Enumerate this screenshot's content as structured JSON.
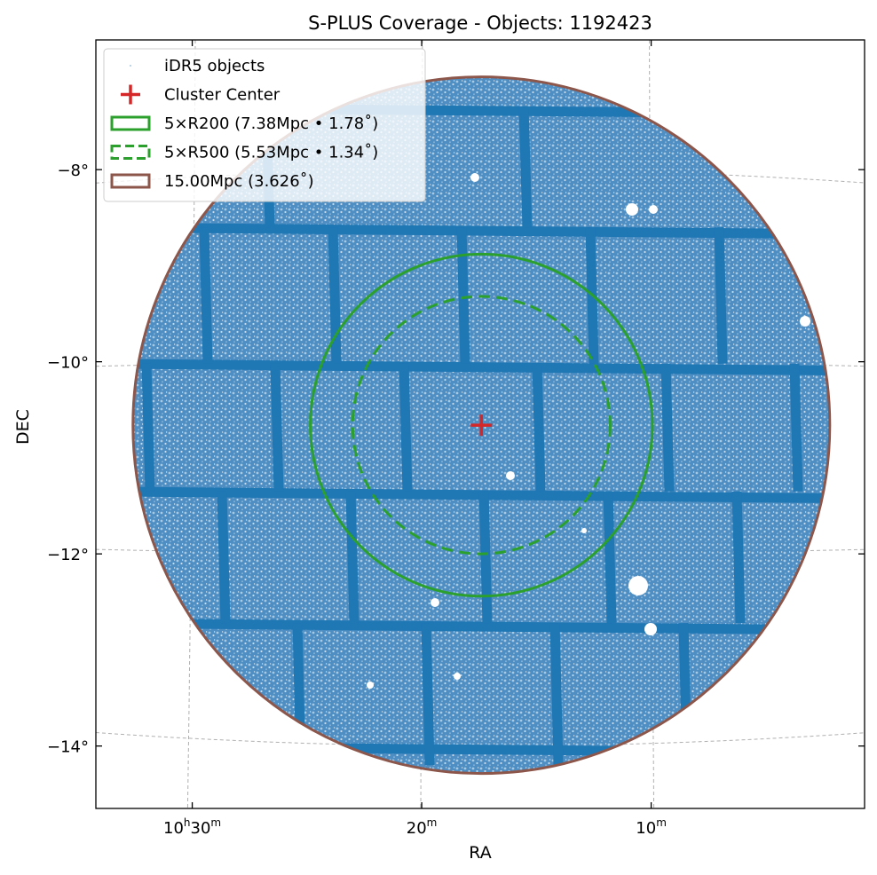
{
  "chart_data": {
    "type": "scatter",
    "projection": "sky (WCS)",
    "title": "S-PLUS Coverage - Objects: 1192423",
    "xlabel": "RA",
    "ylabel": "DEC",
    "x_ticks": [
      {
        "ra_min": 630,
        "label_main": "10",
        "label_sup1": "h",
        "label_mid": "30",
        "label_sup2": "m"
      },
      {
        "ra_min": 620,
        "label_main": "20",
        "label_sup1": "m",
        "label_mid": "",
        "label_sup2": ""
      },
      {
        "ra_min": 610,
        "label_main": "10",
        "label_sup1": "m",
        "label_mid": "",
        "label_sup2": ""
      }
    ],
    "y_ticks": [
      {
        "dec": -8,
        "label": "−8°"
      },
      {
        "dec": -10,
        "label": "−10°"
      },
      {
        "dec": -12,
        "label": "−12°"
      },
      {
        "dec": -14,
        "label": "−14°"
      }
    ],
    "xlim_ra_min": [
      634.2,
      600.7
    ],
    "ylim_dec": [
      -14.65,
      -6.65
    ],
    "grid": true,
    "legend_position": "top-left",
    "center": {
      "ra_min": 617.4,
      "dec": -10.66
    },
    "series": [
      {
        "name": "iDR5 objects",
        "kind": "points",
        "count": 1192423,
        "color": "#1f77b4"
      },
      {
        "name": "Cluster Center",
        "kind": "marker",
        "marker": "+",
        "color": "#d62728"
      },
      {
        "name": "5×R200 (7.38Mpc • 1.78$^\\circ$)",
        "label": "5×R200 (7.38Mpc • 1.78˚)",
        "kind": "circle",
        "radius_deg": 1.78,
        "line": "solid",
        "color": "#2ca02c"
      },
      {
        "name": "5×R500 (5.53Mpc • 1.34$^\\circ$)",
        "label": "5×R500 (5.53Mpc • 1.34˚)",
        "kind": "circle",
        "radius_deg": 1.34,
        "line": "dashed",
        "color": "#2ca02c"
      },
      {
        "name": "15.00Mpc (3.626$^\\circ$)",
        "label": "15.00Mpc (3.626˚)",
        "kind": "circle",
        "radius_deg": 3.626,
        "line": "solid",
        "color": "#8c564b"
      }
    ]
  }
}
